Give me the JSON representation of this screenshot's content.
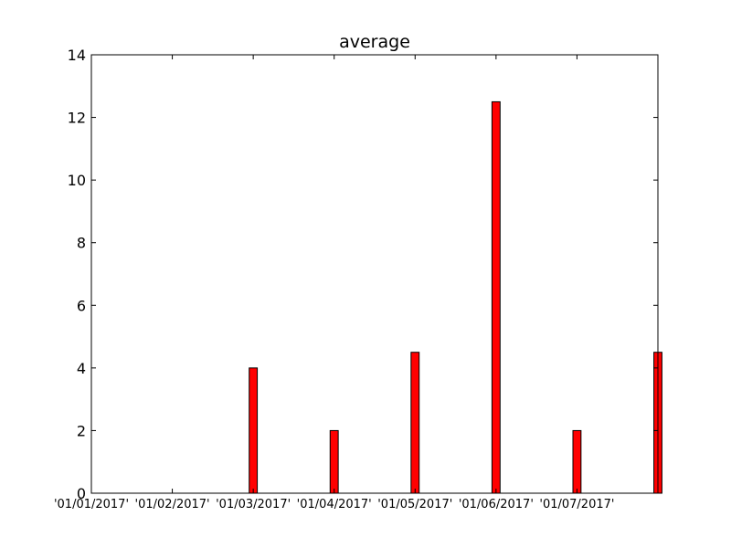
{
  "chart_data": {
    "type": "bar",
    "title": "average",
    "xlabel": "",
    "ylabel": "",
    "categories": [
      "'01/01/2017'",
      "'01/02/2017'",
      "'01/03/2017'",
      "'01/04/2017'",
      "'01/05/2017'",
      "'01/06/2017'",
      "'01/07/2017'"
    ],
    "values": [
      0,
      4,
      2,
      4.5,
      12.5,
      2,
      4.5
    ],
    "ylim": [
      0,
      14
    ],
    "yticks": [
      0,
      2,
      4,
      6,
      8,
      10,
      12,
      14
    ],
    "grid": false,
    "legend": "none",
    "bar_color": "#ff0000",
    "edge_color": "#000000"
  }
}
